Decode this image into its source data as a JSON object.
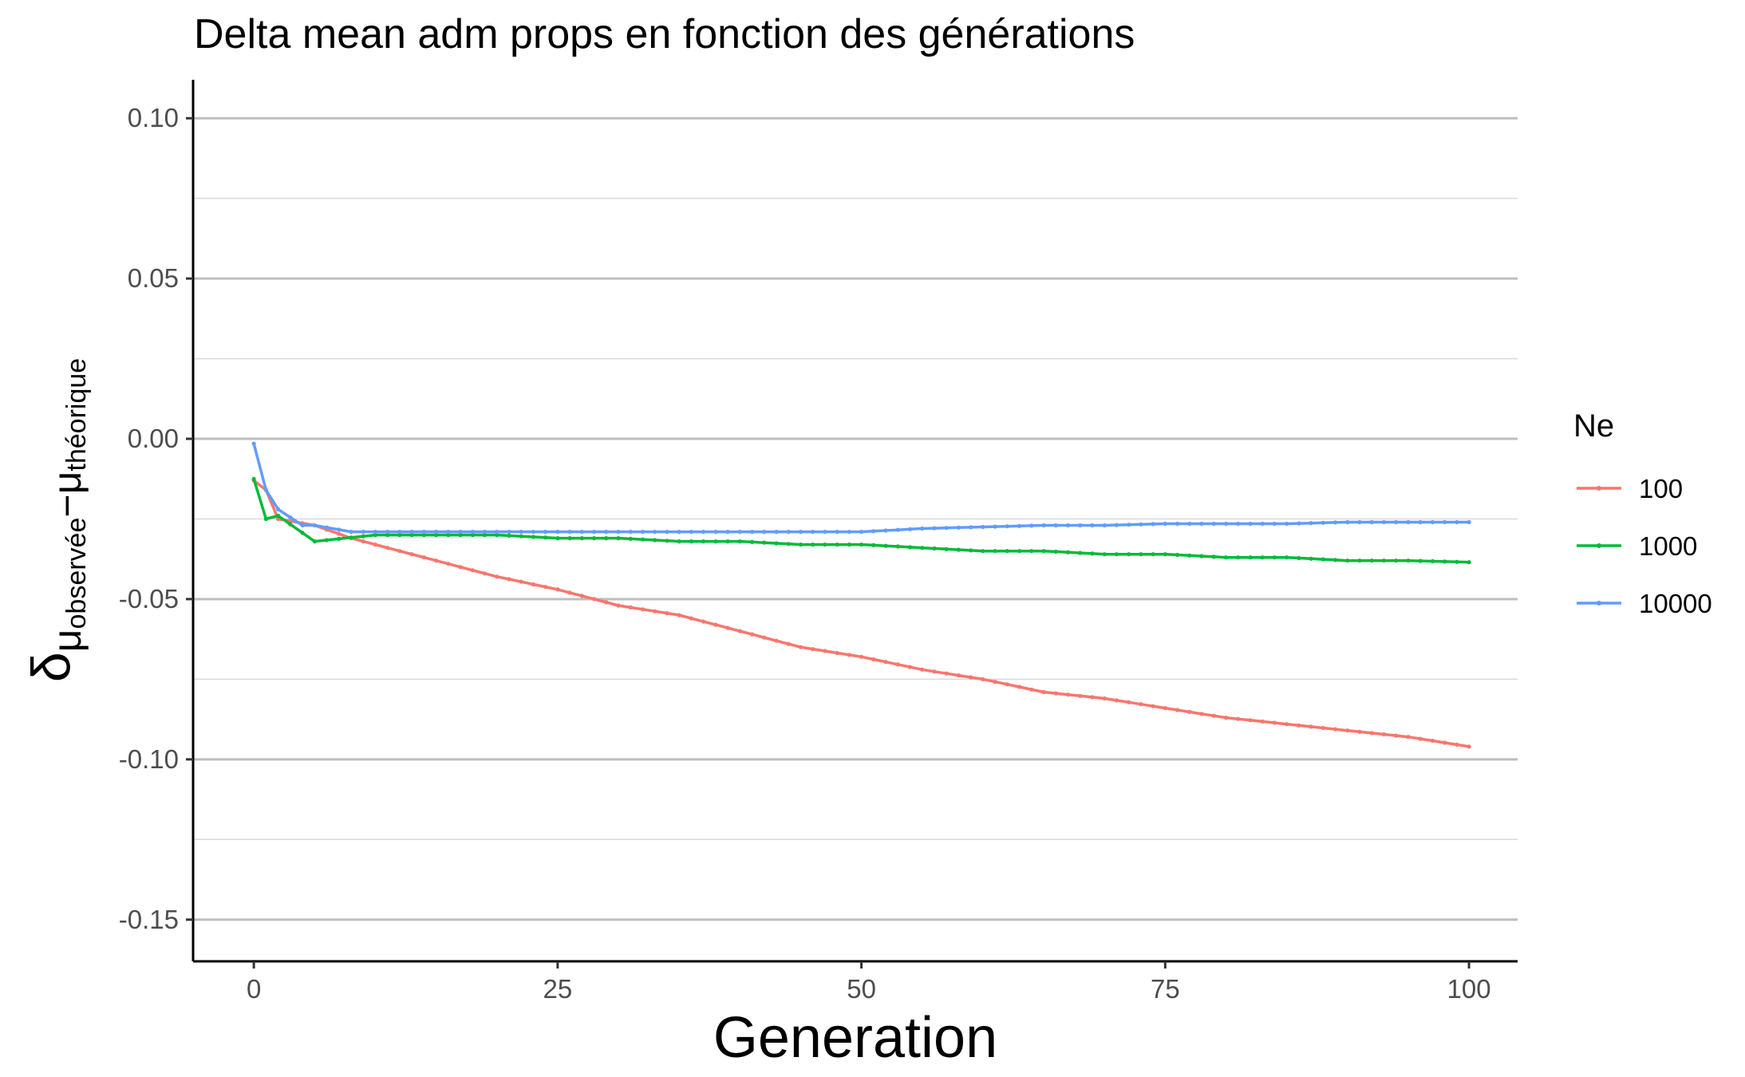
{
  "chart_data": {
    "type": "line",
    "title": "Delta mean adm props en fonction des générations",
    "xlabel": "Generation",
    "ylabel": {
      "main": "δ",
      "sub1": "μ",
      "sub1_sub": "observée",
      "op": "−",
      "sub2": "μ",
      "sub2_sub": "théorique"
    },
    "xlim": [
      -5,
      104
    ],
    "ylim": [
      -0.163,
      0.112
    ],
    "x_ticks": [
      0,
      25,
      50,
      75,
      100
    ],
    "x_tick_labels": [
      "0",
      "25",
      "50",
      "75",
      "100"
    ],
    "y_ticks": [
      0.1,
      0.05,
      0.0,
      -0.05,
      -0.1,
      -0.15
    ],
    "y_tick_labels": [
      "0.10",
      "0.05",
      "0.00",
      "-0.05",
      "-0.10",
      "-0.15"
    ],
    "y_minor_ticks": [
      0.075,
      0.025,
      -0.025,
      -0.075,
      -0.125
    ],
    "grid": true,
    "legend": {
      "title": "Ne",
      "position": "right"
    },
    "series": [
      {
        "name": "100",
        "color": "#F8766D",
        "anchors": [
          [
            0,
            -0.013
          ],
          [
            1,
            -0.016
          ],
          [
            2,
            -0.025
          ],
          [
            5,
            -0.027
          ],
          [
            8,
            -0.031
          ],
          [
            10,
            -0.033
          ],
          [
            15,
            -0.038
          ],
          [
            20,
            -0.043
          ],
          [
            25,
            -0.047
          ],
          [
            30,
            -0.052
          ],
          [
            35,
            -0.055
          ],
          [
            40,
            -0.06
          ],
          [
            45,
            -0.065
          ],
          [
            50,
            -0.068
          ],
          [
            55,
            -0.072
          ],
          [
            60,
            -0.075
          ],
          [
            65,
            -0.079
          ],
          [
            70,
            -0.081
          ],
          [
            75,
            -0.084
          ],
          [
            80,
            -0.087
          ],
          [
            85,
            -0.089
          ],
          [
            90,
            -0.091
          ],
          [
            95,
            -0.093
          ],
          [
            100,
            -0.096
          ]
        ]
      },
      {
        "name": "1000",
        "color": "#00BA38",
        "anchors": [
          [
            0,
            -0.0125
          ],
          [
            1,
            -0.025
          ],
          [
            2,
            -0.024
          ],
          [
            5,
            -0.032
          ],
          [
            10,
            -0.03
          ],
          [
            15,
            -0.03
          ],
          [
            20,
            -0.03
          ],
          [
            25,
            -0.031
          ],
          [
            30,
            -0.031
          ],
          [
            35,
            -0.032
          ],
          [
            40,
            -0.032
          ],
          [
            45,
            -0.033
          ],
          [
            50,
            -0.033
          ],
          [
            55,
            -0.034
          ],
          [
            60,
            -0.035
          ],
          [
            65,
            -0.035
          ],
          [
            70,
            -0.036
          ],
          [
            75,
            -0.036
          ],
          [
            80,
            -0.037
          ],
          [
            85,
            -0.037
          ],
          [
            90,
            -0.038
          ],
          [
            95,
            -0.038
          ],
          [
            100,
            -0.0385
          ]
        ]
      },
      {
        "name": "10000",
        "color": "#619CFF",
        "anchors": [
          [
            0,
            -0.0015
          ],
          [
            1,
            -0.016
          ],
          [
            2,
            -0.022
          ],
          [
            4,
            -0.027
          ],
          [
            5,
            -0.027
          ],
          [
            8,
            -0.029
          ],
          [
            10,
            -0.029
          ],
          [
            15,
            -0.029
          ],
          [
            20,
            -0.029
          ],
          [
            25,
            -0.029
          ],
          [
            30,
            -0.029
          ],
          [
            35,
            -0.029
          ],
          [
            40,
            -0.029
          ],
          [
            45,
            -0.029
          ],
          [
            50,
            -0.029
          ],
          [
            55,
            -0.028
          ],
          [
            60,
            -0.0275
          ],
          [
            65,
            -0.027
          ],
          [
            70,
            -0.027
          ],
          [
            75,
            -0.0265
          ],
          [
            80,
            -0.0265
          ],
          [
            85,
            -0.0265
          ],
          [
            90,
            -0.026
          ],
          [
            95,
            -0.026
          ],
          [
            100,
            -0.026
          ]
        ]
      }
    ]
  }
}
